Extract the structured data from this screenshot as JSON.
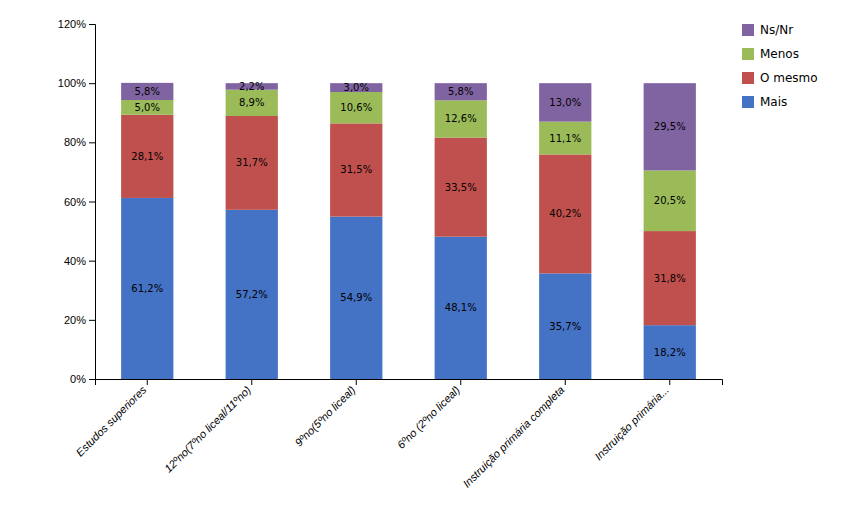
{
  "chart_data": {
    "type": "bar",
    "stacked": true,
    "data_labels": true,
    "grid": false,
    "legend": "right",
    "categories": [
      "Estudos superiores",
      "12ºno(7ºno liceal/11ºno)",
      "9ºno(5ºno liceal)",
      "6ºno (2ºno liceal)",
      "Instruição primária completa",
      "Instruição primária..."
    ],
    "series": [
      {
        "name": "Mais",
        "color": "#4472C4",
        "values": [
          61.2,
          57.2,
          54.9,
          48.1,
          35.7,
          18.2
        ],
        "value_labels": [
          "61,2%",
          "57,2%",
          "54,9%",
          "48,1%",
          "35,7%",
          "18,2%"
        ]
      },
      {
        "name": "O mesmo",
        "color": "#C0504D",
        "values": [
          28.1,
          31.7,
          31.5,
          33.5,
          40.2,
          31.8
        ],
        "value_labels": [
          "28,1%",
          "31,7%",
          "31,5%",
          "33,5%",
          "40,2%",
          "31,8%"
        ]
      },
      {
        "name": "Menos",
        "color": "#9BBB59",
        "values": [
          5.0,
          8.9,
          10.6,
          12.6,
          11.1,
          20.5
        ],
        "value_labels": [
          "5,0%",
          "8,9%",
          "10,6%",
          "12,6%",
          "11,1%",
          "20,5%"
        ]
      },
      {
        "name": "Ns/Nr",
        "color": "#8064A2",
        "values": [
          5.8,
          2.2,
          3.0,
          5.8,
          13.0,
          29.5
        ],
        "value_labels": [
          "5,8%",
          "2,2%",
          "3,0%",
          "5,8%",
          "13,0%",
          "29,5%"
        ]
      }
    ],
    "ylim": [
      0,
      120
    ],
    "yticks": [
      {
        "value": 0,
        "label": "0%"
      },
      {
        "value": 20,
        "label": "20%"
      },
      {
        "value": 40,
        "label": "40%"
      },
      {
        "value": 60,
        "label": "60%"
      },
      {
        "value": 80,
        "label": "80%"
      },
      {
        "value": 100,
        "label": "100%"
      },
      {
        "value": 120,
        "label": "120%"
      }
    ]
  }
}
